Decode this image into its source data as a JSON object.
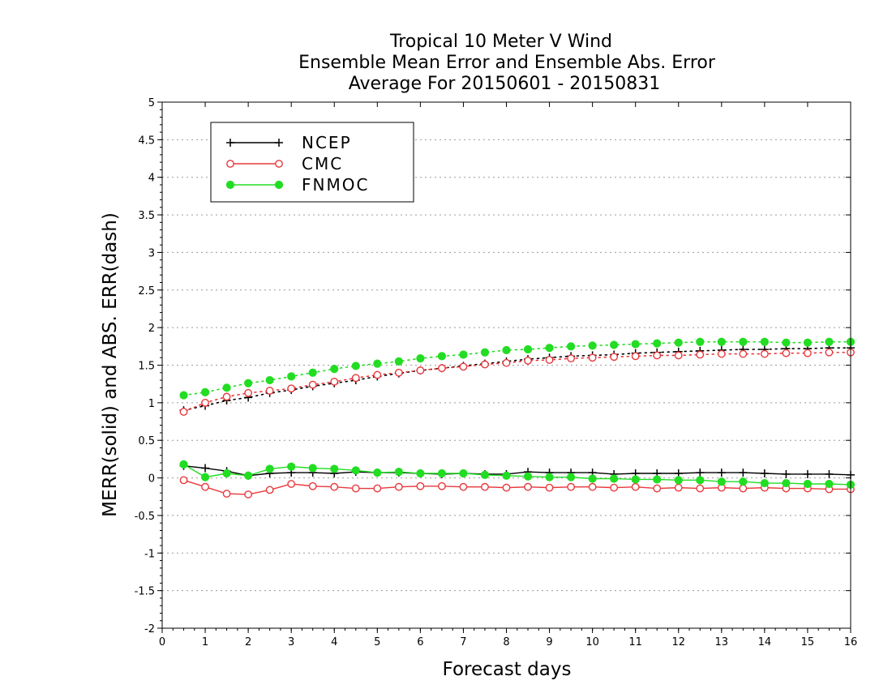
{
  "chart_data": {
    "type": "line",
    "title_lines": [
      "Tropical 10 Meter V Wind",
      "Ensemble Mean Error and Ensemble Abs. Error",
      "Average For 20150601 - 20150831"
    ],
    "xlabel": "Forecast days",
    "ylabel": "MERR(solid) and ABS. ERR(dash)",
    "xlim": [
      0,
      16
    ],
    "ylim": [
      -2,
      5
    ],
    "x_ticks": [
      "0",
      "1",
      "2",
      "3",
      "4",
      "5",
      "6",
      "7",
      "8",
      "9",
      "10",
      "11",
      "12",
      "13",
      "14",
      "15",
      "16"
    ],
    "y_ticks": [
      "5",
      "4.5",
      "4",
      "3.5",
      "3",
      "2.5",
      "2",
      "1.5",
      "1",
      "0.5",
      "0",
      "-0.5",
      "-1",
      "-1.5",
      "-2"
    ],
    "grid": true,
    "legend_position": "top-left",
    "x": [
      0.5,
      1,
      1.5,
      2,
      2.5,
      3,
      3.5,
      4,
      4.5,
      5,
      5.5,
      6,
      6.5,
      7,
      7.5,
      8,
      8.5,
      9,
      9.5,
      10,
      10.5,
      11,
      11.5,
      12,
      12.5,
      13,
      13.5,
      14,
      14.5,
      15,
      15.5,
      16
    ],
    "series": [
      {
        "name": "NCEP",
        "color": "#000000",
        "marker": "plus",
        "merr": [
          0.16,
          0.13,
          0.09,
          0.03,
          0.06,
          0.07,
          0.07,
          0.06,
          0.08,
          0.07,
          0.07,
          0.06,
          0.05,
          0.06,
          0.05,
          0.05,
          0.08,
          0.07,
          0.07,
          0.07,
          0.05,
          0.06,
          0.06,
          0.06,
          0.07,
          0.07,
          0.07,
          0.06,
          0.05,
          0.05,
          0.05,
          0.04
        ],
        "abs_err": [
          0.9,
          0.96,
          1.03,
          1.07,
          1.13,
          1.17,
          1.22,
          1.26,
          1.3,
          1.35,
          1.39,
          1.43,
          1.46,
          1.49,
          1.52,
          1.55,
          1.58,
          1.6,
          1.62,
          1.63,
          1.64,
          1.66,
          1.67,
          1.68,
          1.69,
          1.7,
          1.71,
          1.71,
          1.72,
          1.72,
          1.73,
          1.73
        ]
      },
      {
        "name": "CMC",
        "color": "#e8383c",
        "marker": "open-circle",
        "merr": [
          -0.03,
          -0.12,
          -0.21,
          -0.22,
          -0.16,
          -0.08,
          -0.11,
          -0.12,
          -0.14,
          -0.14,
          -0.12,
          -0.11,
          -0.11,
          -0.12,
          -0.12,
          -0.13,
          -0.12,
          -0.13,
          -0.12,
          -0.12,
          -0.13,
          -0.12,
          -0.14,
          -0.13,
          -0.14,
          -0.13,
          -0.14,
          -0.13,
          -0.14,
          -0.14,
          -0.15,
          -0.15
        ],
        "abs_err": [
          0.88,
          1.0,
          1.08,
          1.13,
          1.16,
          1.19,
          1.24,
          1.28,
          1.33,
          1.37,
          1.4,
          1.43,
          1.46,
          1.48,
          1.51,
          1.53,
          1.56,
          1.57,
          1.59,
          1.6,
          1.61,
          1.62,
          1.63,
          1.63,
          1.64,
          1.65,
          1.65,
          1.65,
          1.66,
          1.66,
          1.67,
          1.67
        ]
      },
      {
        "name": "FNMOC",
        "color": "#22dd22",
        "marker": "filled-circle",
        "merr": [
          0.18,
          0.01,
          0.06,
          0.03,
          0.12,
          0.15,
          0.13,
          0.12,
          0.1,
          0.07,
          0.08,
          0.06,
          0.06,
          0.06,
          0.04,
          0.03,
          0.02,
          0.01,
          0.01,
          -0.01,
          -0.01,
          -0.02,
          -0.02,
          -0.03,
          -0.03,
          -0.05,
          -0.05,
          -0.07,
          -0.07,
          -0.08,
          -0.08,
          -0.09
        ],
        "abs_err": [
          1.1,
          1.14,
          1.2,
          1.26,
          1.3,
          1.35,
          1.4,
          1.45,
          1.49,
          1.52,
          1.55,
          1.59,
          1.62,
          1.64,
          1.67,
          1.7,
          1.71,
          1.73,
          1.75,
          1.76,
          1.77,
          1.78,
          1.79,
          1.8,
          1.81,
          1.81,
          1.81,
          1.81,
          1.8,
          1.8,
          1.81,
          1.81
        ]
      }
    ]
  }
}
